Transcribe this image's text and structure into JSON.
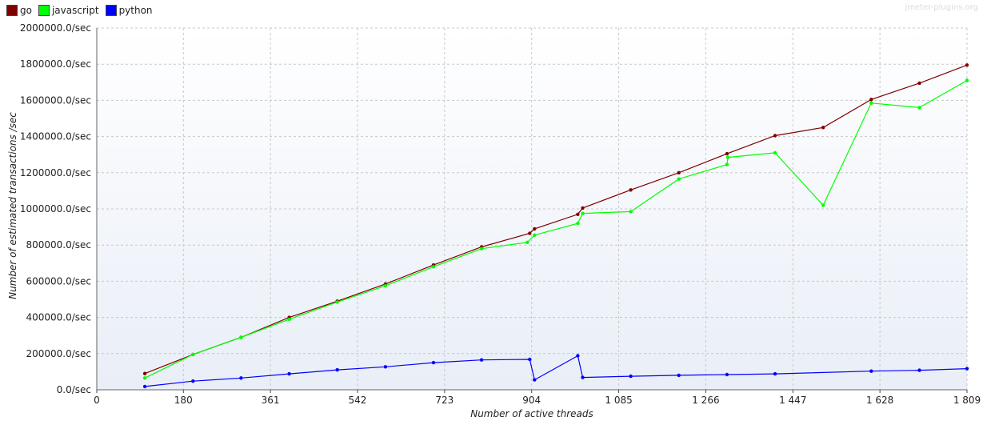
{
  "watermark": "jmeter-plugins.org",
  "legend": [
    {
      "label": "go",
      "color": "#800000"
    },
    {
      "label": "javascript",
      "color": "#00ff00"
    },
    {
      "label": "python",
      "color": "#0000ff"
    }
  ],
  "chart_data": {
    "type": "line",
    "xlabel": "Number of active threads",
    "ylabel": "Number of estimated transactions /sec",
    "xlim": [
      0,
      1809
    ],
    "ylim": [
      0,
      2000000
    ],
    "x_ticks": [
      0,
      180,
      361,
      542,
      723,
      904,
      1085,
      1266,
      1447,
      1628,
      1809
    ],
    "x_tick_labels": [
      "0",
      "180",
      "361",
      "542",
      "723",
      "904",
      "1 085",
      "1 266",
      "1 447",
      "1 628",
      "1 809"
    ],
    "y_ticks": [
      0,
      200000,
      400000,
      600000,
      800000,
      1000000,
      1200000,
      1400000,
      1600000,
      1800000,
      2000000
    ],
    "y_tick_labels": [
      "0.0/sec",
      "200000.0/sec",
      "400000.0/sec",
      "600000.0/sec",
      "800000.0/sec",
      "1000000.0/sec",
      "1200000.0/sec",
      "1400000.0/sec",
      "1600000.0/sec",
      "1800000.0/sec",
      "2000000.0/sec"
    ],
    "grid": true,
    "legend_position": "top-left",
    "series": [
      {
        "name": "go",
        "color": "#800000",
        "points": [
          [
            100,
            90000
          ],
          [
            200,
            195000
          ],
          [
            300,
            290000
          ],
          [
            400,
            400000
          ],
          [
            500,
            490000
          ],
          [
            600,
            585000
          ],
          [
            700,
            690000
          ],
          [
            800,
            790000
          ],
          [
            900,
            865000
          ],
          [
            910,
            890000
          ],
          [
            1000,
            970000
          ],
          [
            1010,
            1005000
          ],
          [
            1110,
            1105000
          ],
          [
            1210,
            1200000
          ],
          [
            1310,
            1305000
          ],
          [
            1410,
            1405000
          ],
          [
            1510,
            1450000
          ],
          [
            1610,
            1605000
          ],
          [
            1710,
            1695000
          ],
          [
            1809,
            1795000
          ]
        ]
      },
      {
        "name": "javascript",
        "color": "#00ff00",
        "points": [
          [
            100,
            65000
          ],
          [
            200,
            195000
          ],
          [
            300,
            290000
          ],
          [
            400,
            390000
          ],
          [
            500,
            485000
          ],
          [
            600,
            575000
          ],
          [
            700,
            680000
          ],
          [
            800,
            780000
          ],
          [
            895,
            815000
          ],
          [
            910,
            855000
          ],
          [
            1000,
            920000
          ],
          [
            1010,
            975000
          ],
          [
            1110,
            985000
          ],
          [
            1210,
            1165000
          ],
          [
            1310,
            1245000
          ],
          [
            1312,
            1285000
          ],
          [
            1410,
            1310000
          ],
          [
            1510,
            1020000
          ],
          [
            1610,
            1585000
          ],
          [
            1710,
            1560000
          ],
          [
            1809,
            1710000
          ]
        ]
      },
      {
        "name": "python",
        "color": "#0000ff",
        "points": [
          [
            100,
            18000
          ],
          [
            200,
            48000
          ],
          [
            300,
            65000
          ],
          [
            400,
            88000
          ],
          [
            500,
            110000
          ],
          [
            600,
            127000
          ],
          [
            700,
            150000
          ],
          [
            800,
            165000
          ],
          [
            900,
            168000
          ],
          [
            910,
            55000
          ],
          [
            1000,
            188000
          ],
          [
            1010,
            68000
          ],
          [
            1110,
            75000
          ],
          [
            1210,
            80000
          ],
          [
            1310,
            84000
          ],
          [
            1410,
            88000
          ],
          [
            1610,
            103000
          ],
          [
            1710,
            108000
          ],
          [
            1809,
            117000
          ]
        ]
      }
    ]
  }
}
